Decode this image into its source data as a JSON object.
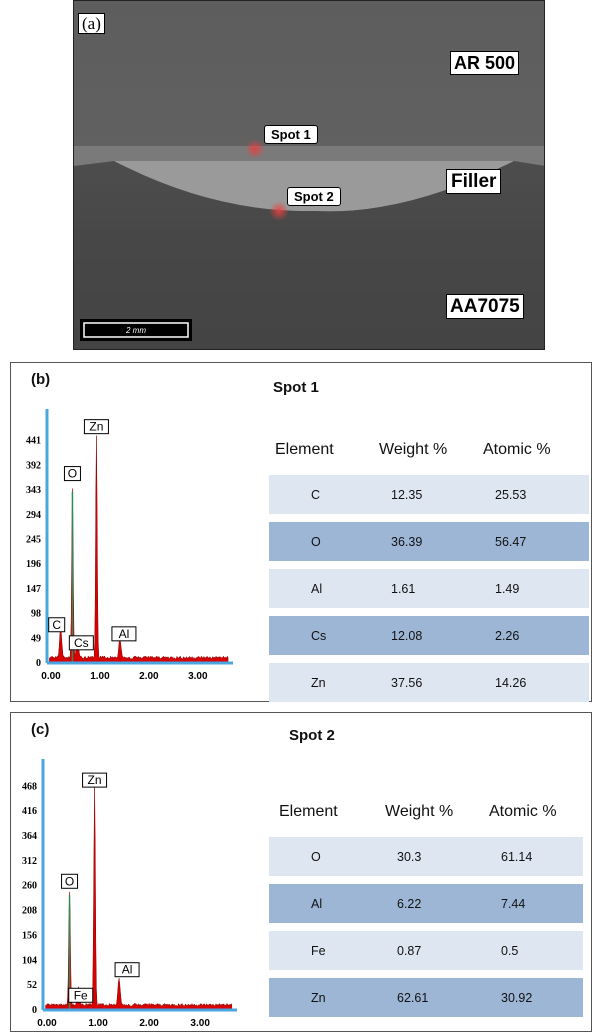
{
  "panel_a": {
    "letter": "(a)",
    "labels": {
      "ar500": "AR 500",
      "filler": "Filler",
      "aa7075": "AA7075",
      "spot1": "Spot 1",
      "spot2": "Spot 2"
    },
    "scale_bar": "2 mm",
    "colors": {
      "spot_marker": "#d23a3a"
    }
  },
  "panel_b": {
    "letter": "(b)",
    "title": "Spot 1",
    "table": {
      "headers": [
        "Element",
        "Weight %",
        "Atomic %"
      ],
      "rows": [
        [
          "C",
          "12.35",
          "25.53"
        ],
        [
          "O",
          "36.39",
          "56.47"
        ],
        [
          "Al",
          "1.61",
          "1.49"
        ],
        [
          "Cs",
          "12.08",
          "2.26"
        ],
        [
          "Zn",
          "37.56",
          "14.26"
        ]
      ]
    }
  },
  "panel_c": {
    "letter": "(c)",
    "title": "Spot 2",
    "table": {
      "headers": [
        "Element",
        "Weight %",
        "Atomic %"
      ],
      "rows": [
        [
          "O",
          "30.3",
          "61.14"
        ],
        [
          "Al",
          "6.22",
          "7.44"
        ],
        [
          "Fe",
          "0.87",
          "0.5"
        ],
        [
          "Zn",
          "62.61",
          "30.92"
        ]
      ]
    }
  },
  "chart_data": [
    {
      "type": "line",
      "panel": "b",
      "yticks": [
        0,
        49,
        98,
        147,
        196,
        245,
        294,
        343,
        392,
        441
      ],
      "xticks": [
        "0.00",
        "1.00",
        "2.00",
        "3.00"
      ],
      "xlim": [
        0,
        3.8
      ],
      "ylim": [
        0,
        480
      ],
      "peaks": [
        {
          "label": "C",
          "x": 0.28,
          "y": 60
        },
        {
          "label": "O",
          "x": 0.52,
          "y": 340
        },
        {
          "label": "Cs",
          "x": 0.62,
          "y": 44
        },
        {
          "label": "Zn",
          "x": 1.01,
          "y": 441
        },
        {
          "label": "Al",
          "x": 1.49,
          "y": 38
        }
      ],
      "colors": {
        "fill": "#d80000",
        "axis": "#4aa6e0"
      }
    },
    {
      "type": "line",
      "panel": "c",
      "yticks": [
        0,
        52,
        104,
        156,
        208,
        260,
        312,
        364,
        416,
        468
      ],
      "xticks": [
        "0.00",
        "1.00",
        "2.00",
        "3.00"
      ],
      "xlim": [
        0,
        3.8
      ],
      "ylim": [
        0,
        500
      ],
      "peaks": [
        {
          "label": "O",
          "x": 0.52,
          "y": 240
        },
        {
          "label": "Fe",
          "x": 0.7,
          "y": 35
        },
        {
          "label": "Zn",
          "x": 1.01,
          "y": 460
        },
        {
          "label": "Al",
          "x": 1.49,
          "y": 55
        }
      ],
      "colors": {
        "fill": "#d80000",
        "axis": "#4aa6e0"
      }
    }
  ]
}
